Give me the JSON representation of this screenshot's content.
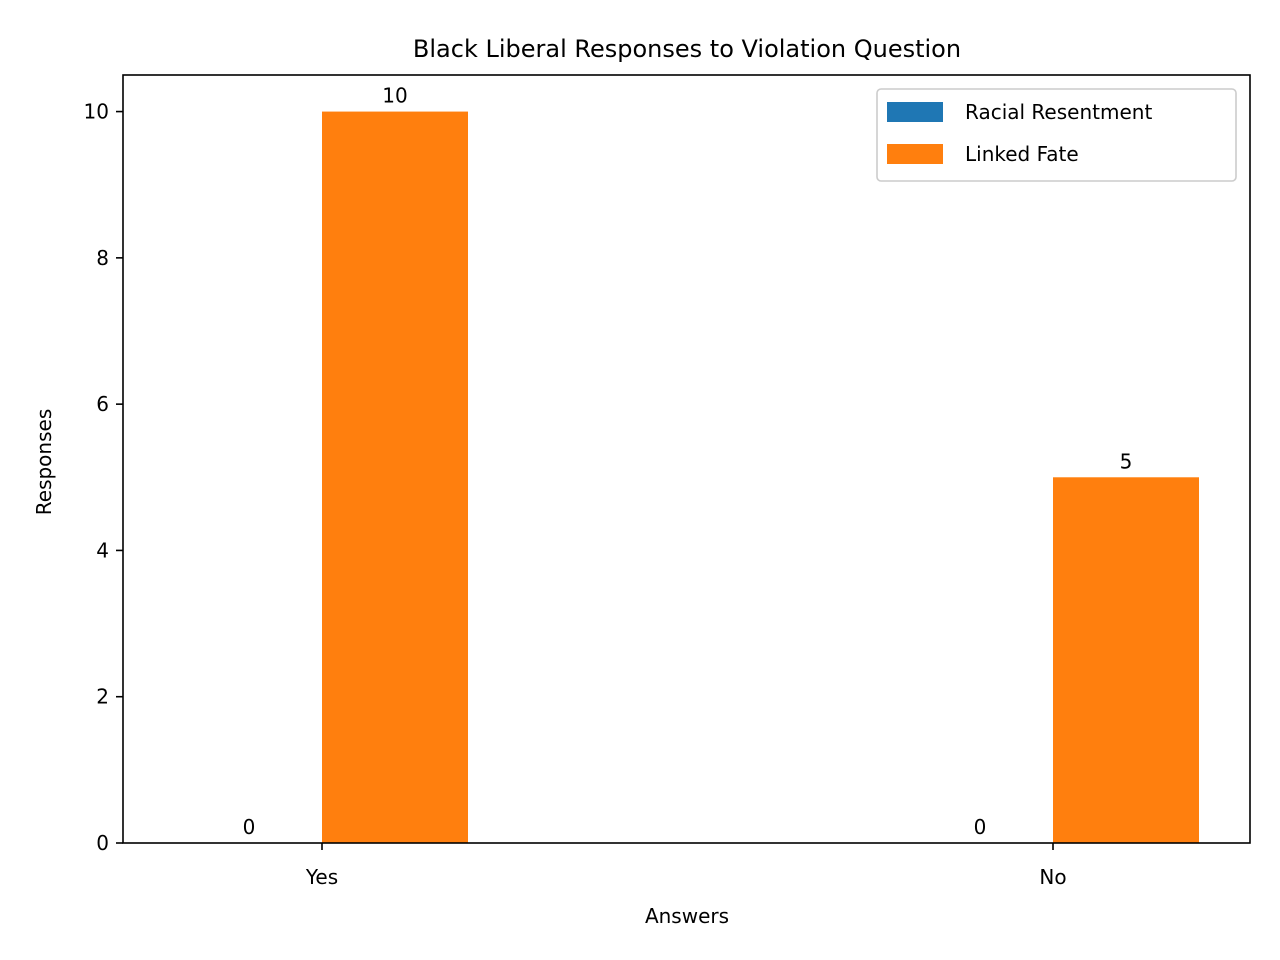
{
  "chart_data": {
    "type": "bar",
    "title": "Black Liberal Responses to Violation Question",
    "xlabel": "Answers",
    "ylabel": "Responses",
    "categories": [
      "Yes",
      "No"
    ],
    "series": [
      {
        "name": "Racial Resentment",
        "values": [
          0,
          0
        ],
        "color": "#1f77b4"
      },
      {
        "name": "Linked Fate",
        "values": [
          10,
          5
        ],
        "color": "#ff7f0e"
      }
    ],
    "ylim": [
      0,
      10.5
    ],
    "yticks": [
      0,
      2,
      4,
      6,
      8,
      10
    ],
    "grid": false,
    "legend_position": "top-right",
    "data_labels": true
  }
}
